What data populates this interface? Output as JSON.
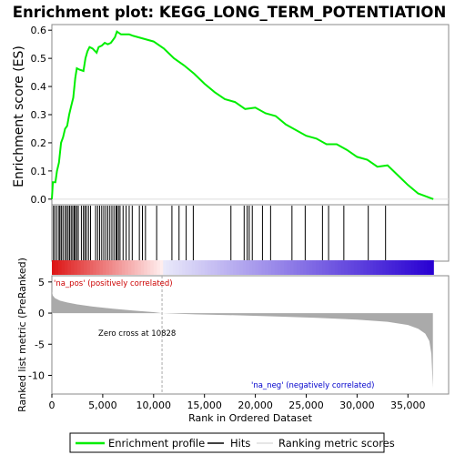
{
  "chart_data": {
    "type": "line",
    "title": "Enrichment plot: KEGG_LONG_TERM_POTENTIATION",
    "top_panel": {
      "ylabel": "Enrichment score (ES)",
      "yticks": [
        0.0,
        0.1,
        0.2,
        0.3,
        0.4,
        0.5,
        0.6
      ],
      "ytick_labels": [
        "0.0",
        "0.1",
        "0.2",
        "0.3",
        "0.4",
        "0.5",
        "0.6"
      ],
      "ylim": [
        -0.02,
        0.62
      ],
      "series": [
        {
          "name": "Enrichment profile",
          "color": "#00ee00",
          "points": [
            [
              0,
              0.0
            ],
            [
              100,
              0.06
            ],
            [
              350,
              0.06
            ],
            [
              500,
              0.1
            ],
            [
              700,
              0.13
            ],
            [
              900,
              0.2
            ],
            [
              1100,
              0.22
            ],
            [
              1300,
              0.25
            ],
            [
              1500,
              0.26
            ],
            [
              1700,
              0.3
            ],
            [
              1900,
              0.33
            ],
            [
              2100,
              0.36
            ],
            [
              2300,
              0.43
            ],
            [
              2450,
              0.465
            ],
            [
              2700,
              0.46
            ],
            [
              3100,
              0.455
            ],
            [
              3300,
              0.5
            ],
            [
              3500,
              0.525
            ],
            [
              3700,
              0.54
            ],
            [
              4000,
              0.535
            ],
            [
              4400,
              0.52
            ],
            [
              4600,
              0.54
            ],
            [
              4900,
              0.545
            ],
            [
              5200,
              0.555
            ],
            [
              5500,
              0.55
            ],
            [
              5800,
              0.555
            ],
            [
              6000,
              0.565
            ],
            [
              6200,
              0.575
            ],
            [
              6400,
              0.595
            ],
            [
              6800,
              0.585
            ],
            [
              7200,
              0.585
            ],
            [
              7600,
              0.585
            ],
            [
              8000,
              0.58
            ],
            [
              9000,
              0.57
            ],
            [
              10000,
              0.56
            ],
            [
              11000,
              0.535
            ],
            [
              12000,
              0.5
            ],
            [
              13000,
              0.475
            ],
            [
              14000,
              0.445
            ],
            [
              15000,
              0.41
            ],
            [
              16000,
              0.38
            ],
            [
              17000,
              0.355
            ],
            [
              18000,
              0.345
            ],
            [
              19000,
              0.32
            ],
            [
              20000,
              0.325
            ],
            [
              21000,
              0.305
            ],
            [
              22000,
              0.295
            ],
            [
              23000,
              0.265
            ],
            [
              24000,
              0.245
            ],
            [
              25000,
              0.225
            ],
            [
              26000,
              0.215
            ],
            [
              27000,
              0.195
            ],
            [
              28000,
              0.195
            ],
            [
              29000,
              0.175
            ],
            [
              30000,
              0.15
            ],
            [
              31000,
              0.14
            ],
            [
              32000,
              0.115
            ],
            [
              33000,
              0.12
            ],
            [
              34000,
              0.085
            ],
            [
              35000,
              0.05
            ],
            [
              36000,
              0.02
            ],
            [
              37500,
              0.0
            ]
          ]
        }
      ]
    },
    "hits": {
      "name": "Hits",
      "color": "#000000",
      "positions": [
        150,
        300,
        500,
        700,
        800,
        950,
        1100,
        1300,
        1450,
        1600,
        1750,
        1900,
        2050,
        2200,
        2300,
        2450,
        2600,
        2900,
        3100,
        3250,
        3400,
        3600,
        3800,
        4300,
        4500,
        4700,
        4900,
        5100,
        5300,
        5500,
        5700,
        5900,
        6100,
        6300,
        6400,
        6550,
        6700,
        7000,
        7300,
        7600,
        7900,
        8600,
        8900,
        9200,
        10300,
        11800,
        12500,
        13200,
        13900,
        17600,
        18900,
        19200,
        19400,
        19700,
        20700,
        21500,
        23600,
        24900,
        26600,
        27200,
        28700,
        31100,
        32800
      ]
    },
    "bottom_panel": {
      "ylabel": "Ranked list metric (PreRanked)",
      "yticks": [
        5,
        0,
        -5,
        -10
      ],
      "ytick_labels": [
        "5",
        "0",
        "-5",
        "-10"
      ],
      "ylim": [
        -13,
        6
      ],
      "series": [
        {
          "name": "Ranking metric scores",
          "color": "#aaaaaa",
          "points": [
            [
              0,
              3.5
            ],
            [
              100,
              2.8
            ],
            [
              300,
              2.4
            ],
            [
              800,
              2.0
            ],
            [
              1500,
              1.7
            ],
            [
              2500,
              1.4
            ],
            [
              4000,
              1.05
            ],
            [
              6000,
              0.7
            ],
            [
              8000,
              0.4
            ],
            [
              10000,
              0.15
            ],
            [
              10828,
              0.0
            ],
            [
              14000,
              -0.2
            ],
            [
              18000,
              -0.35
            ],
            [
              22000,
              -0.55
            ],
            [
              26000,
              -0.75
            ],
            [
              30000,
              -1.05
            ],
            [
              33000,
              -1.4
            ],
            [
              35000,
              -1.9
            ],
            [
              36000,
              -2.5
            ],
            [
              36700,
              -3.3
            ],
            [
              37100,
              -4.5
            ],
            [
              37300,
              -6.5
            ],
            [
              37400,
              -10.0
            ],
            [
              37450,
              -12.0
            ]
          ]
        }
      ],
      "zero_cross_label": "Zero cross at 10828",
      "zero_cross": 10828,
      "pos_label": "'na_pos' (positively correlated)",
      "neg_label": "'na_neg' (negatively correlated)",
      "pos_color": "#cc0000",
      "neg_color": "#0000cc"
    },
    "xaxis": {
      "xlabel": "Rank in Ordered Dataset",
      "xlim": [
        0,
        39000
      ],
      "xticks": [
        0,
        5000,
        10000,
        15000,
        20000,
        25000,
        30000,
        35000
      ],
      "xtick_labels": [
        "0",
        "5,000",
        "10,000",
        "15,000",
        "20,000",
        "25,000",
        "30,000",
        "35,000"
      ],
      "n_genes": 37500
    },
    "legend": {
      "placement": "bottom",
      "items": [
        {
          "label": "Enrichment profile",
          "color": "#00ee00"
        },
        {
          "label": "Hits",
          "color": "#000000"
        },
        {
          "label": "Ranking metric scores",
          "color": "#dddddd"
        }
      ]
    }
  }
}
